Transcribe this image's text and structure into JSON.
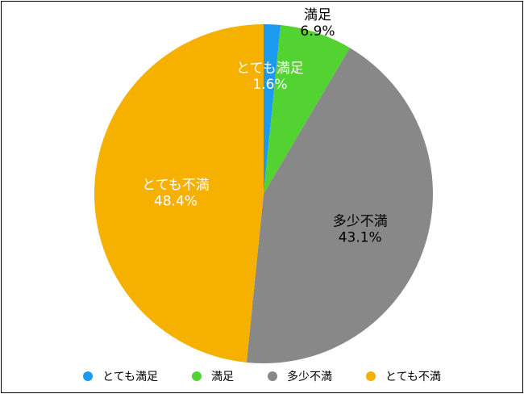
{
  "chart_data": {
    "type": "pie",
    "categories": [
      "とても満足",
      "満足",
      "多少不満",
      "とても不満"
    ],
    "values": [
      1.6,
      6.9,
      43.1,
      48.4
    ],
    "value_labels": [
      "1.6%",
      "6.9%",
      "43.1%",
      "48.4%"
    ],
    "colors": [
      "#1a9bf0",
      "#53d331",
      "#888888",
      "#f5b000"
    ],
    "title": "",
    "legend": "bottom"
  }
}
